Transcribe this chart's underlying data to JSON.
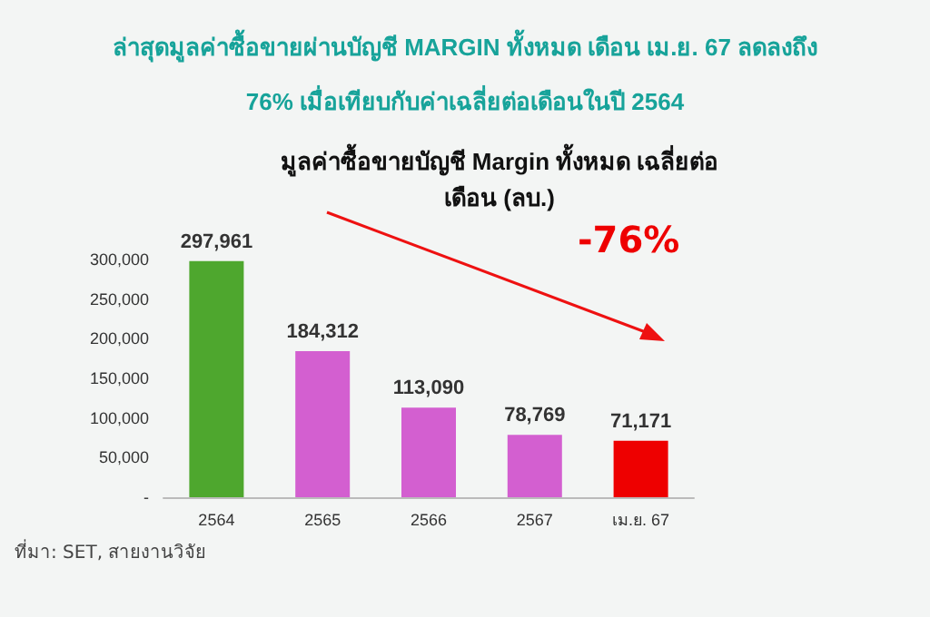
{
  "chart_data": {
    "type": "bar",
    "title": "ล่าสุดมูลค่าซื้อขายผ่านบัญชี MARGIN ทั้งหมด เดือน เม.ย. 67 ลดลงถึง\n76% เมื่อเทียบกับค่าเฉลี่ยต่อเดือนในปี 2564",
    "subtitle": "มูลค่าซื้อขายบัญชี Margin ทั้งหมด เฉลี่ยต่อ\nเดือน (ลบ.)",
    "categories": [
      "2564",
      "2565",
      "2566",
      "2567",
      "เม.ย. 67"
    ],
    "values": [
      297961,
      184312,
      113090,
      78769,
      71171
    ],
    "colors": [
      "#4ea72e",
      "#d35fd0",
      "#d35fd0",
      "#d35fd0",
      "#ee0000"
    ],
    "value_labels": [
      "297,961",
      "184,312",
      "113,090",
      "78,769",
      "71,171"
    ],
    "ylim": [
      0,
      300000
    ],
    "yticks": [
      {
        "value": 0,
        "label": "-"
      },
      {
        "value": 50000,
        "label": "50,000"
      },
      {
        "value": 100000,
        "label": "100,000"
      },
      {
        "value": 150000,
        "label": "150,000"
      },
      {
        "value": 200000,
        "label": "200,000"
      },
      {
        "value": 250000,
        "label": "250,000"
      },
      {
        "value": 300000,
        "label": "300,000"
      }
    ],
    "grid": false,
    "annotations": [
      "-76%",
      "ที่มา: SET, สายงานวิจัย"
    ]
  }
}
